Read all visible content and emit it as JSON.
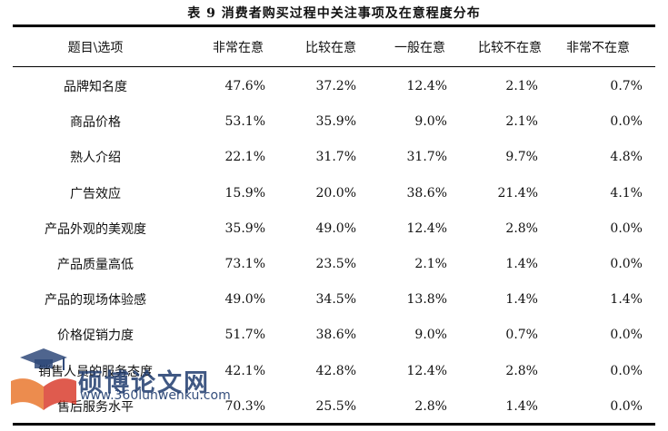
{
  "caption": "表 9  消费者购买过程中关注事项及在意程度分布",
  "columns": [
    "题目\\选项",
    "非常在意",
    "比较在意",
    "一般在意",
    "比较不在意",
    "非常不在意"
  ],
  "rows": [
    {
      "item": "品牌知名度",
      "values": [
        "47.6%",
        "37.2%",
        "12.4%",
        "2.1%",
        "0.7%"
      ]
    },
    {
      "item": "商品价格",
      "values": [
        "53.1%",
        "35.9%",
        "9.0%",
        "2.1%",
        "0.0%"
      ]
    },
    {
      "item": "熟人介绍",
      "values": [
        "22.1%",
        "31.7%",
        "31.7%",
        "9.7%",
        "4.8%"
      ]
    },
    {
      "item": "广告效应",
      "values": [
        "15.9%",
        "20.0%",
        "38.6%",
        "21.4%",
        "4.1%"
      ]
    },
    {
      "item": "产品外观的美观度",
      "values": [
        "35.9%",
        "49.0%",
        "12.4%",
        "2.8%",
        "0.0%"
      ]
    },
    {
      "item": "产品质量高低",
      "values": [
        "73.1%",
        "23.5%",
        "2.1%",
        "1.4%",
        "0.0%"
      ]
    },
    {
      "item": "产品的现场体验感",
      "values": [
        "49.0%",
        "34.5%",
        "13.8%",
        "1.4%",
        "1.4%"
      ]
    },
    {
      "item": "价格促销力度",
      "values": [
        "51.7%",
        "38.6%",
        "9.0%",
        "0.7%",
        "0.0%"
      ]
    },
    {
      "item": "销售人员的服务态度",
      "values": [
        "42.1%",
        "42.8%",
        "12.4%",
        "2.8%",
        "0.0%"
      ]
    },
    {
      "item": "售后服务水平",
      "values": [
        "70.3%",
        "25.5%",
        "2.8%",
        "1.4%",
        "0.0%"
      ]
    }
  ],
  "watermark": {
    "name": "硕博论文网",
    "url": "www.360lunwenku.com",
    "logo_icon": "graduation-cap-book-icon",
    "colors": {
      "blue": "#1f3b6e",
      "orange": "#e8742a",
      "red": "#d83a2a"
    }
  }
}
